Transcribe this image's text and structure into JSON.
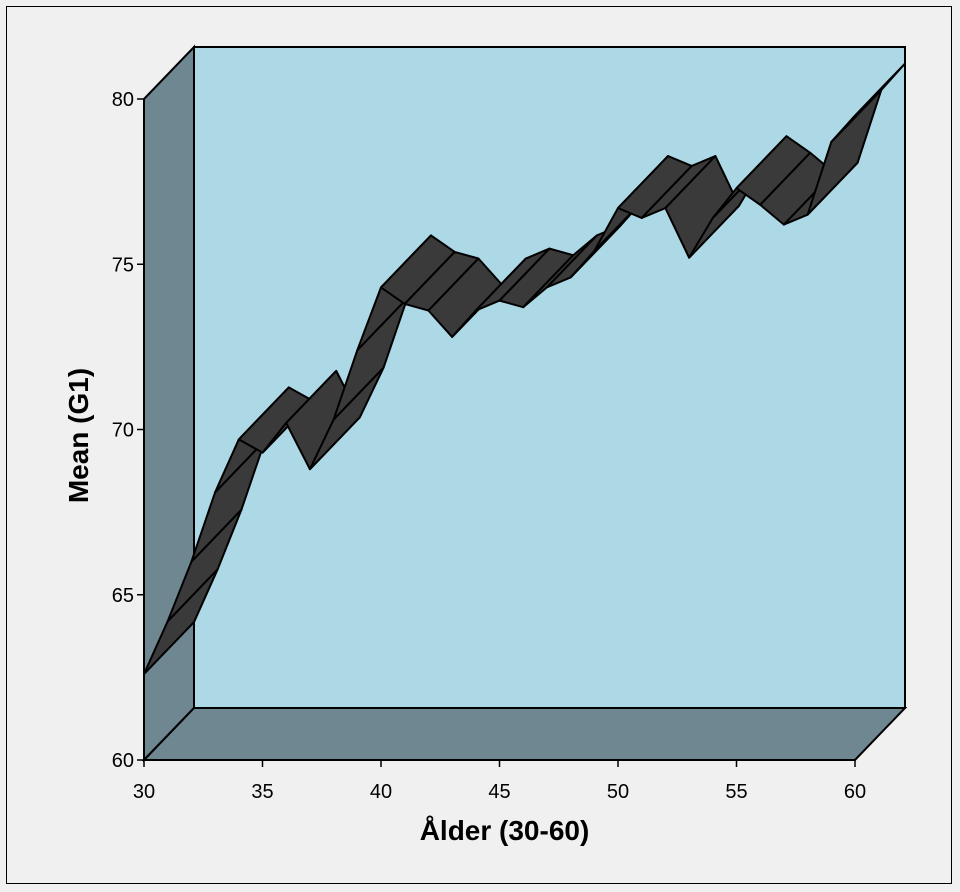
{
  "chart_data": {
    "type": "line",
    "style": "3d-ribbon",
    "xlabel": "Ålder (30-60)",
    "ylabel": "Mean (G1)",
    "xlim": [
      30,
      60
    ],
    "ylim": [
      60,
      80
    ],
    "x_ticks": [
      "30",
      "35",
      "40",
      "45",
      "50",
      "55",
      "60"
    ],
    "y_ticks": [
      "60",
      "65",
      "70",
      "75",
      "80"
    ],
    "grid": false,
    "legend": "none",
    "series": [
      {
        "x": [
          30,
          31,
          32,
          33,
          34,
          35,
          36,
          37,
          38,
          39,
          40,
          41,
          42,
          43,
          44,
          45,
          46,
          47,
          48,
          49,
          50,
          51,
          52,
          53,
          54,
          55,
          56,
          57,
          58,
          59,
          60
        ],
        "values": [
          62.6,
          64.2,
          66.0,
          68.1,
          69.7,
          69.3,
          70.2,
          68.8,
          70.3,
          72.4,
          74.3,
          73.8,
          73.6,
          72.8,
          73.6,
          73.9,
          73.7,
          74.3,
          74.6,
          75.4,
          76.7,
          76.4,
          76.7,
          75.2,
          76.4,
          77.3,
          76.8,
          76.2,
          76.5,
          78.7,
          79.5
        ]
      }
    ],
    "colors": {
      "back_wall": "#add8e6",
      "side_walls": "#6e8791",
      "ribbon": "#3a3a3a",
      "background": "#f0f0f0"
    }
  }
}
